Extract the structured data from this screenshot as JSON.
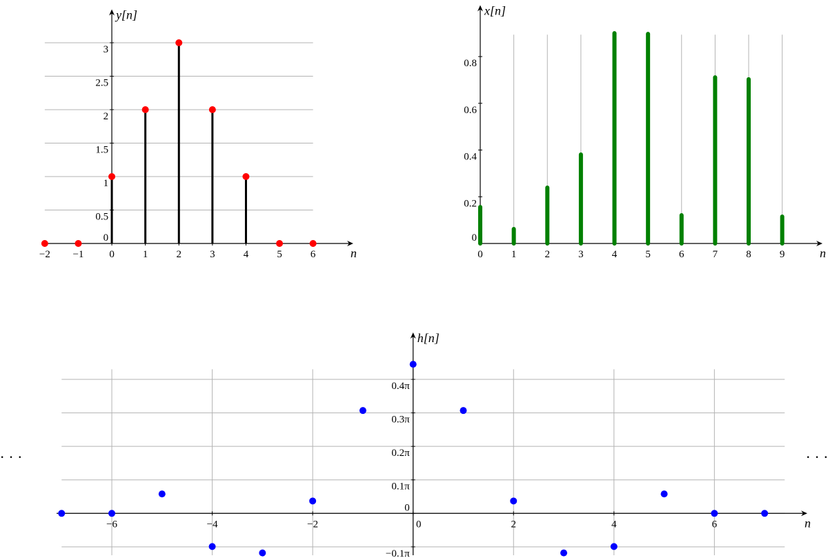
{
  "chart_data": [
    {
      "type": "stem",
      "ylabel": "y[n]",
      "xlabel": "n",
      "x": [
        -2,
        -1,
        0,
        1,
        2,
        3,
        4,
        5,
        6
      ],
      "values": [
        0,
        0,
        1,
        2,
        3,
        2,
        1,
        0,
        0
      ],
      "color": "#ff0000",
      "stem_color": "#000000",
      "xlim": [
        -2.1,
        7.2
      ],
      "ylim": [
        0,
        3.5
      ],
      "xticks": [
        {
          "value": -2,
          "label": "−2"
        },
        {
          "value": -1,
          "label": "−1"
        },
        0,
        1,
        2,
        3,
        4,
        5,
        6
      ],
      "yticks": [
        0,
        0.5,
        1,
        1.5,
        2,
        2.5,
        3
      ],
      "grid": "y"
    },
    {
      "type": "bar",
      "ylabel": "x[n]",
      "xlabel": "n",
      "x": [
        0,
        1,
        2,
        3,
        4,
        5,
        6,
        7,
        8,
        9
      ],
      "values": [
        0.156,
        0.062,
        0.239,
        0.381,
        0.9,
        0.897,
        0.121,
        0.711,
        0.703,
        0.115
      ],
      "color": "#008000",
      "xlim": [
        0,
        10.2
      ],
      "ylim": [
        0,
        1.02
      ],
      "xticks": [
        0,
        1,
        2,
        3,
        4,
        5,
        6,
        7,
        8,
        9
      ],
      "yticks": [
        0,
        0.2,
        0.4,
        0.6,
        0.8
      ],
      "grid": "x"
    },
    {
      "type": "scatter",
      "ylabel": "h[n]",
      "xlabel": "n",
      "x": [
        -7,
        -6,
        -5,
        -4,
        -3,
        -2,
        -1,
        0,
        1,
        2,
        3,
        4,
        5,
        6,
        7
      ],
      "values": [
        0,
        0,
        0.058,
        -0.099,
        -0.118,
        0.037,
        0.307,
        0.445,
        0.307,
        0.037,
        -0.118,
        -0.099,
        0.058,
        0,
        0
      ],
      "color": "#0000ff",
      "xlim": [
        -7.1,
        7.85
      ],
      "ylim": [
        -0.125,
        0.54
      ],
      "xticks": [
        {
          "value": -6,
          "label": "−6"
        },
        {
          "value": -4,
          "label": "−4"
        },
        {
          "value": -2,
          "label": "−2"
        },
        0,
        2,
        4,
        6
      ],
      "yticks": [
        {
          "value": -0.1,
          "label": "−0.1π"
        },
        0,
        {
          "value": 0.1,
          "label": "0.1π"
        },
        {
          "value": 0.2,
          "label": "0.2π"
        },
        {
          "value": 0.3,
          "label": "0.3π"
        },
        {
          "value": 0.4,
          "label": "0.4π"
        }
      ],
      "grid": "both",
      "annotations": [
        "· · ·",
        "· · ·"
      ]
    }
  ]
}
